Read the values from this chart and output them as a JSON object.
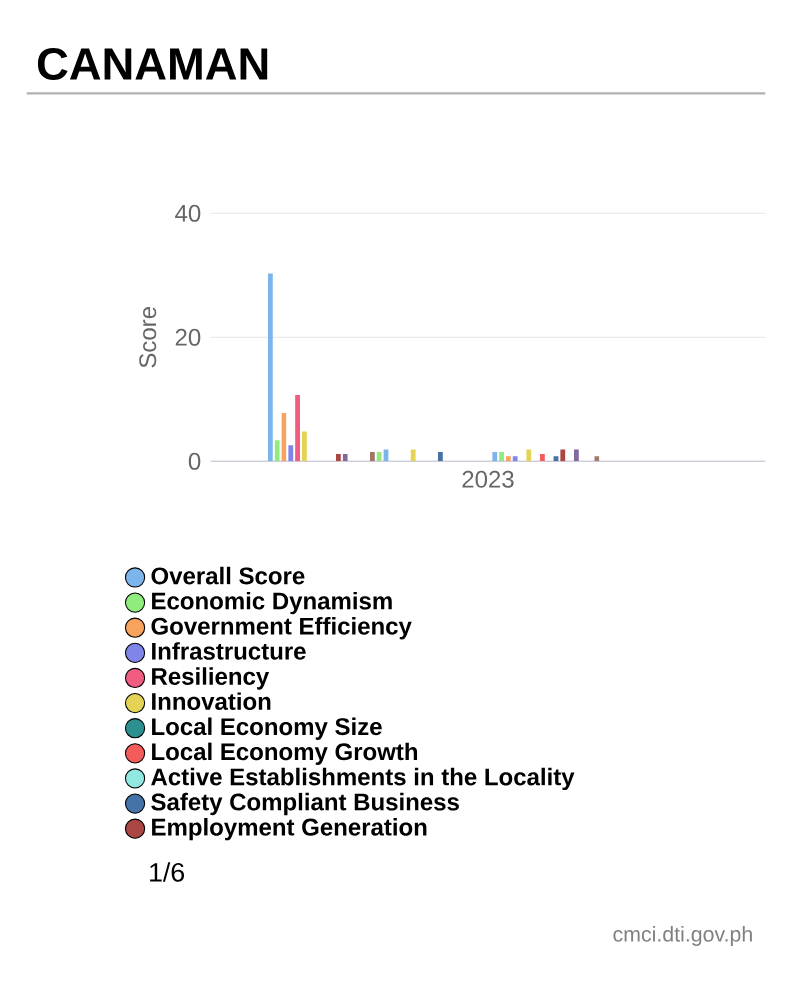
{
  "chart_data": {
    "type": "bar",
    "title": "CANAMAN",
    "ylabel": "Score",
    "categories": [
      "2023"
    ],
    "ylim": [
      0,
      40
    ],
    "yticks": [
      0,
      20,
      40
    ],
    "grid": "y",
    "legend": "bottom",
    "annotations": [
      "1/6",
      "cmci.dti.gov.ph"
    ],
    "series": [
      {
        "name": "Overall Score",
        "color": "#7cb5ec",
        "values": [
          30.3
        ]
      },
      {
        "name": "Economic Dynamism",
        "color": "#90ed7d",
        "values": [
          3.4
        ]
      },
      {
        "name": "Government Efficiency",
        "color": "#f7a35c",
        "values": [
          7.8
        ]
      },
      {
        "name": "Infrastructure",
        "color": "#8085e9",
        "values": [
          2.6
        ]
      },
      {
        "name": "Resiliency",
        "color": "#f15c80",
        "values": [
          10.7
        ]
      },
      {
        "name": "Innovation",
        "color": "#e4d354",
        "values": [
          4.8
        ]
      },
      {
        "name": "Local Economy Size",
        "color": "#2b908f",
        "values": [
          null
        ]
      },
      {
        "name": "Local Economy Growth",
        "color": "#f45b5b",
        "values": [
          null
        ]
      },
      {
        "name": "Active Establishments in the Locality",
        "color": "#91e8e1",
        "values": [
          null
        ]
      },
      {
        "name": "Safety Compliant Business",
        "color": "#4572a7",
        "values": [
          null
        ]
      },
      {
        "name": "Employment Generation",
        "color": "#aa4643",
        "values": [
          1.2
        ]
      },
      {
        "color": "#80699b",
        "values": [
          1.2
        ]
      },
      {
        "color": "#cccccc",
        "values": [
          null
        ]
      },
      {
        "color": "#cccccc",
        "values": [
          null
        ]
      },
      {
        "color": "#cccccc",
        "values": [
          null
        ]
      },
      {
        "color": "#a0786a",
        "values": [
          1.5
        ]
      },
      {
        "color": "#90ed7d",
        "values": [
          1.5
        ]
      },
      {
        "color": "#7cb5ec",
        "values": [
          1.9
        ]
      },
      {
        "color": "#cccccc",
        "values": [
          null
        ]
      },
      {
        "color": "#cccccc",
        "values": [
          null
        ]
      },
      {
        "color": "#cccccc",
        "values": [
          null
        ]
      },
      {
        "color": "#e4d354",
        "values": [
          1.9
        ]
      },
      {
        "color": "#cccccc",
        "values": [
          null
        ]
      },
      {
        "color": "#cccccc",
        "values": [
          null
        ]
      },
      {
        "color": "#cccccc",
        "values": [
          null
        ]
      },
      {
        "color": "#4572a7",
        "values": [
          1.5
        ]
      },
      {
        "color": "#cccccc",
        "values": [
          null
        ]
      },
      {
        "color": "#cccccc",
        "values": [
          null
        ]
      },
      {
        "color": "#cccccc",
        "values": [
          null
        ]
      },
      {
        "color": "#cccccc",
        "values": [
          null
        ]
      },
      {
        "color": "#cccccc",
        "values": [
          null
        ]
      },
      {
        "color": "#cccccc",
        "values": [
          null
        ]
      },
      {
        "color": "#cccccc",
        "values": [
          null
        ]
      },
      {
        "color": "#7cb5ec",
        "values": [
          1.5
        ]
      },
      {
        "color": "#90ed7d",
        "values": [
          1.5
        ]
      },
      {
        "color": "#f7a35c",
        "values": [
          0.8
        ]
      },
      {
        "color": "#8085e9",
        "values": [
          0.8
        ]
      },
      {
        "color": "#cccccc",
        "values": [
          null
        ]
      },
      {
        "color": "#e4d354",
        "values": [
          1.9
        ]
      },
      {
        "color": "#cccccc",
        "values": [
          null
        ]
      },
      {
        "color": "#f45b5b",
        "values": [
          1.2
        ]
      },
      {
        "color": "#cccccc",
        "values": [
          null
        ]
      },
      {
        "color": "#4572a7",
        "values": [
          0.8
        ]
      },
      {
        "color": "#aa4643",
        "values": [
          1.9
        ]
      },
      {
        "color": "#cccccc",
        "values": [
          null
        ]
      },
      {
        "color": "#80699b",
        "values": [
          1.9
        ]
      },
      {
        "color": "#cccccc",
        "values": [
          null
        ]
      },
      {
        "color": "#cccccc",
        "values": [
          null
        ]
      },
      {
        "color": "#a0786a",
        "values": [
          0.8
        ]
      }
    ]
  }
}
